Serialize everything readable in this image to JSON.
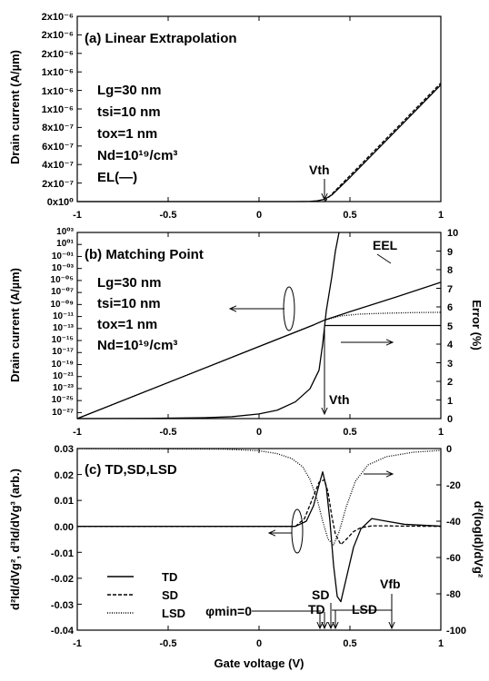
{
  "chart_data": [
    {
      "type": "line",
      "panel": "a",
      "title": "(a) Linear Extrapolation",
      "xlabel": "",
      "ylabel": "Drain current (A/µm)",
      "xlim": [
        -1,
        1
      ],
      "ylim": [
        0,
        2e-06
      ],
      "x_ticks": [
        -1,
        -0.5,
        0,
        0.5,
        1
      ],
      "x_tick_labels": [
        "-1",
        "-0.5",
        "0",
        "0.5",
        "1"
      ],
      "y_ticks": [
        0,
        2e-07,
        4e-07,
        6e-07,
        8e-07,
        1e-06,
        1.2e-06,
        1.4e-06,
        1.6e-06,
        1.8e-06,
        2e-06
      ],
      "y_tick_labels": [
        "0x10⁰",
        "2x10⁻⁷",
        "4x10⁻⁷",
        "6x10⁻⁷",
        "8x10⁻⁷",
        "1x10⁻⁶",
        "1x10⁻⁶",
        "1x10⁻⁶",
        "2x10⁻⁶",
        "2x10⁻⁶",
        "2x10⁻⁶"
      ],
      "params": [
        "Lg=30 nm",
        "tsi=10 nm",
        "tox=1 nm",
        "Nd=10¹⁹/cm³",
        "EL(—)"
      ],
      "annotations": [
        {
          "text": "Vth",
          "x": 0.36
        }
      ],
      "series": [
        {
          "style": "solid",
          "x": [
            -1,
            0.2,
            0.28,
            0.32,
            0.36,
            0.4,
            0.5,
            0.6,
            0.7,
            0.8,
            0.9,
            1.0
          ],
          "y": [
            0,
            0,
            2e-09,
            8e-09,
            2.5e-08,
            7e-08,
            2.6e-07,
            4.6e-07,
            6.6e-07,
            8.6e-07,
            1.06e-06,
            1.26e-06
          ]
        },
        {
          "style": "dashed",
          "x": [
            0.36,
            1.0
          ],
          "y": [
            0,
            1.28e-06
          ]
        }
      ]
    },
    {
      "type": "line",
      "panel": "b",
      "title": "(b) Matching Point",
      "xlabel": "",
      "ylabel": "Drain current (A/µm)",
      "y2label": "Error (%)",
      "xlim": [
        -1,
        1
      ],
      "ylim_log10": [
        -28,
        3
      ],
      "y2lim": [
        0,
        10
      ],
      "x_ticks": [
        -1,
        -0.5,
        0,
        0.5,
        1
      ],
      "x_tick_labels": [
        "-1",
        "-0.5",
        "0",
        "0.5",
        "1"
      ],
      "y_tick_exponents": [
        3,
        1,
        -1,
        -3,
        -5,
        -7,
        -9,
        -11,
        -13,
        -15,
        -17,
        -19,
        -21,
        -23,
        -25,
        -27
      ],
      "y_tick_labels": [
        "10⁰³",
        "10⁰¹",
        "10⁻⁰¹",
        "10⁻⁰³",
        "10⁻⁰⁵",
        "10⁻⁰⁷",
        "10⁻⁰⁹",
        "10⁻¹¹",
        "10⁻¹³",
        "10⁻¹⁵",
        "10⁻¹⁷",
        "10⁻¹⁹",
        "10⁻²¹",
        "10⁻²³",
        "10⁻²⁵",
        "10⁻²⁷"
      ],
      "y2_ticks": [
        0,
        1,
        2,
        3,
        4,
        5,
        6,
        7,
        8,
        9,
        10
      ],
      "params": [
        "Lg=30 nm",
        "tsi=10 nm",
        "tox=1 nm",
        "Nd=10¹⁹/cm³"
      ],
      "annotations": [
        {
          "text": "EEL"
        },
        {
          "text": "Vth",
          "x": 0.36
        }
      ],
      "series": [
        {
          "style": "solid",
          "axis": "log",
          "x": [
            -1,
            -0.5,
            0,
            0.3,
            0.36,
            0.5,
            0.75,
            1.0
          ],
          "log10_y": [
            -28,
            -22,
            -16,
            -12.4,
            -11.6,
            -10.2,
            -7.8,
            -5.3
          ]
        },
        {
          "style": "dotted",
          "axis": "log",
          "x": [
            -1,
            -0.5,
            0,
            0.3,
            0.36,
            0.45,
            0.55,
            0.7,
            0.85,
            1.0
          ],
          "log10_y": [
            -28,
            -22,
            -16,
            -12.4,
            -11.6,
            -10.9,
            -10.6,
            -10.45,
            -10.35,
            -10.3
          ]
        },
        {
          "style": "solid",
          "axis": "error",
          "x": [
            -1,
            -0.6,
            -0.3,
            -0.15,
            0,
            0.1,
            0.2,
            0.28,
            0.33,
            0.35,
            0.37,
            0.4,
            0.42,
            0.44
          ],
          "y": [
            0,
            0.01,
            0.05,
            0.1,
            0.25,
            0.45,
            0.9,
            1.6,
            2.6,
            4.0,
            5.8,
            7.6,
            9.0,
            10.0
          ]
        },
        {
          "style": "solid",
          "axis": "error",
          "x": [
            0.36,
            1.0
          ],
          "y": [
            5,
            5
          ]
        }
      ]
    },
    {
      "type": "line",
      "panel": "c",
      "title": "(c) TD,SD,LSD",
      "xlabel": "Gate voltage (V)",
      "ylabel": "d²Id/dVg², d³Id/dVg³ (arb.)",
      "y2label": "d²(logId)/dVg²",
      "xlim": [
        -1,
        1
      ],
      "ylim": [
        -0.04,
        0.03
      ],
      "y2lim": [
        -100,
        0
      ],
      "x_ticks": [
        -1,
        -0.5,
        0,
        0.5,
        1
      ],
      "x_tick_labels": [
        "-1",
        "-0.5",
        "0",
        "0.5",
        "1"
      ],
      "y_ticks": [
        -0.04,
        -0.03,
        -0.02,
        -0.01,
        0,
        0.01,
        0.02,
        0.03
      ],
      "y_tick_labels": [
        "-0.04",
        "-0.03",
        "-0.02",
        "-0.01",
        "0.00",
        "0.01",
        "0.02",
        "0.03"
      ],
      "y2_ticks": [
        -100,
        -80,
        -60,
        -40,
        -20,
        0
      ],
      "y2_tick_labels": [
        "-100",
        "-80",
        "-60",
        "-40",
        "-20",
        "0"
      ],
      "legend": [
        {
          "label": "TD",
          "style": "solid"
        },
        {
          "label": "SD",
          "style": "dashed"
        },
        {
          "label": "LSD",
          "style": "dotted"
        }
      ],
      "annotations": [
        {
          "text": "φmin=0"
        },
        {
          "text": "SD"
        },
        {
          "text": "TD"
        },
        {
          "text": "LSD"
        },
        {
          "text": "Vfb"
        }
      ],
      "series": [
        {
          "name": "TD",
          "style": "solid",
          "axis": "left",
          "x": [
            -1,
            0.2,
            0.26,
            0.3,
            0.33,
            0.35,
            0.37,
            0.39,
            0.41,
            0.43,
            0.45,
            0.48,
            0.52,
            0.56,
            0.62,
            0.7,
            0.8,
            1.0
          ],
          "y": [
            0,
            0,
            0.002,
            0.008,
            0.016,
            0.021,
            0.015,
            0.002,
            -0.015,
            -0.027,
            -0.029,
            -0.02,
            -0.008,
            -0.001,
            0.003,
            0.002,
            0.0008,
            0.0001
          ]
        },
        {
          "name": "SD",
          "style": "dashed",
          "axis": "left",
          "x": [
            -1,
            0.2,
            0.25,
            0.29,
            0.33,
            0.36,
            0.38,
            0.4,
            0.42,
            0.45,
            0.48,
            0.52,
            0.56,
            0.62,
            0.7,
            0.8,
            1.0
          ],
          "y": [
            0,
            0,
            0.003,
            0.01,
            0.017,
            0.018,
            0.013,
            0.004,
            -0.003,
            -0.007,
            -0.005,
            -0.002,
            -0.0005,
            0.0002,
            0.0002,
            0.0001,
            0
          ]
        },
        {
          "name": "LSD",
          "style": "dotted",
          "axis": "right",
          "x": [
            -1,
            -0.2,
            0,
            0.1,
            0.18,
            0.24,
            0.28,
            0.32,
            0.35,
            0.38,
            0.41,
            0.44,
            0.48,
            0.53,
            0.6,
            0.7,
            0.85,
            1.0
          ],
          "y": [
            0,
            -0.3,
            -1.2,
            -2.8,
            -5.5,
            -10,
            -17,
            -28,
            -40,
            -50,
            -53,
            -46,
            -32,
            -18,
            -9,
            -4.5,
            -2,
            -1
          ]
        }
      ]
    }
  ]
}
